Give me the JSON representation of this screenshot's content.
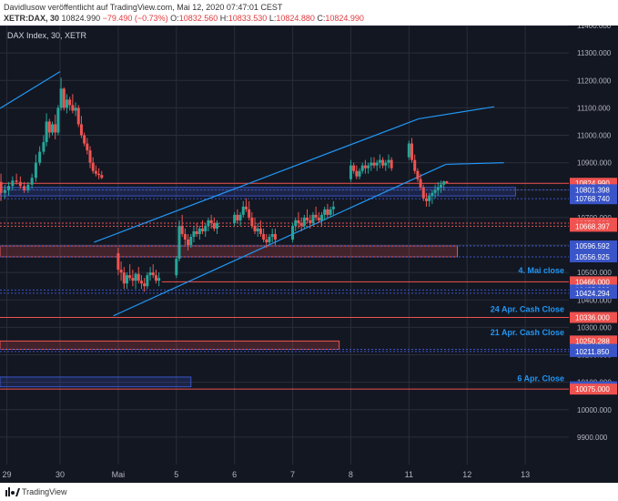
{
  "header": {
    "publisher": "Davidlusow",
    "published_text": "veröffentlicht auf TradingView.com, Mai 12, 2020 07:47:01 CEST",
    "symbol": "XETR:DAX, 30",
    "last": "10824.990",
    "change": "−79.490 (−0.73%)",
    "o_label": "O:",
    "o_value": "10832.560",
    "h_label": "H:",
    "h_value": "10833.530",
    "l_label": "L:",
    "l_value": "10824.880",
    "c_label": "C:",
    "c_value": "10824.990"
  },
  "footer": {
    "brand": "TradingView"
  },
  "chart_data": {
    "type": "candlestick",
    "title": "DAX Index, 30, XETR",
    "y_range": [
      9800,
      11400
    ],
    "y_ticks": [
      "11400.000",
      "11300.000",
      "11200.000",
      "11100.000",
      "11000.000",
      "10900.000",
      "10800.000",
      "10700.000",
      "10600.000",
      "10500.000",
      "10400.000",
      "10300.000",
      "10200.000",
      "10100.000",
      "10000.000",
      "9900.000"
    ],
    "x_ticks": [
      {
        "label": "29",
        "pos": 0.5
      },
      {
        "label": "30",
        "pos": 6
      },
      {
        "label": "Mai",
        "pos": 12
      },
      {
        "label": "5",
        "pos": 18
      },
      {
        "label": "6",
        "pos": 24
      },
      {
        "label": "7",
        "pos": 30
      },
      {
        "label": "8",
        "pos": 36
      },
      {
        "label": "11",
        "pos": 42
      },
      {
        "label": "12",
        "pos": 48
      },
      {
        "label": "13",
        "pos": 54
      }
    ],
    "x_range": [
      -0.2,
      58.5
    ],
    "colors": {
      "up": "#26a69a",
      "down": "#ef5350",
      "level": "#ef5350",
      "channel": "#2196f3",
      "zone_blue": "#3a55c8",
      "level_blue": "#5b6fe0"
    },
    "price_labels": [
      {
        "value": 10824.99,
        "text": "10824.990",
        "color": "#ef5350"
      },
      {
        "value": 10801.398,
        "text": "10801.398",
        "color": "#3a55c8"
      },
      {
        "value": 10768.74,
        "text": "10768.740",
        "color": "#3a55c8"
      },
      {
        "value": 10679.689,
        "text": "10679.689",
        "color": "#ef5350"
      },
      {
        "value": 10668.397,
        "text": "10668.397",
        "color": "#ef5350"
      },
      {
        "value": 10596.592,
        "text": "10596.592",
        "color": "#3a55c8"
      },
      {
        "value": 10556.925,
        "text": "10556.925",
        "color": "#3a55c8"
      },
      {
        "value": 10466.0,
        "text": "10466.000",
        "color": "#ef5350"
      },
      {
        "value": 10435.933,
        "text": "10435.933",
        "color": "#3a55c8"
      },
      {
        "value": 10424.294,
        "text": "10424.294",
        "color": "#3a55c8"
      },
      {
        "value": 10336.0,
        "text": "10336.000",
        "color": "#ef5350"
      },
      {
        "value": 10250.288,
        "text": "10250.288",
        "color": "#ef5350"
      },
      {
        "value": 10219.88,
        "text": "10219.880",
        "color": "#3a55c8"
      },
      {
        "value": 10211.85,
        "text": "10211.850",
        "color": "#3a55c8"
      },
      {
        "value": 10083.391,
        "text": "10083.391",
        "color": "#3a55c8"
      },
      {
        "value": 10075.0,
        "text": "10075.000",
        "color": "#ef5350"
      }
    ],
    "annotations": [
      {
        "text": "4. Mai close",
        "value": 10497
      },
      {
        "text": "24 Apr. Cash Close",
        "value": 10356
      },
      {
        "text": "21 Apr. Cash Close",
        "value": 10271
      },
      {
        "text": "6 Apr. Close",
        "value": 10104
      }
    ],
    "levels": [
      {
        "value": 10824.99,
        "x0": -0.2,
        "x1": 58.5,
        "color": "#ef5350",
        "dash": false
      },
      {
        "value": 10801.398,
        "x0": -0.2,
        "x1": 58.5,
        "color": "#3a55c8",
        "dash": true
      },
      {
        "value": 10768.74,
        "x0": -0.2,
        "x1": 58.5,
        "color": "#3a55c8",
        "dash": true
      },
      {
        "value": 10679.689,
        "x0": -0.2,
        "x1": 58.5,
        "color": "#ef5350",
        "dash": true
      },
      {
        "value": 10668.397,
        "x0": -0.2,
        "x1": 58.5,
        "color": "#ef5350",
        "dash": true
      },
      {
        "value": 10596.592,
        "x0": -0.2,
        "x1": 58.5,
        "color": "#3a55c8",
        "dash": true
      },
      {
        "value": 10556.925,
        "x0": -0.2,
        "x1": 58.5,
        "color": "#3a55c8",
        "dash": true
      },
      {
        "value": 10466.0,
        "x0": 16.5,
        "x1": 58.5,
        "color": "#ef5350",
        "dash": false
      },
      {
        "value": 10435.933,
        "x0": -0.2,
        "x1": 58.5,
        "color": "#3a55c8",
        "dash": true
      },
      {
        "value": 10424.294,
        "x0": -0.2,
        "x1": 58.5,
        "color": "#3a55c8",
        "dash": true
      },
      {
        "value": 10336.0,
        "x0": -0.2,
        "x1": 58.5,
        "color": "#ef5350",
        "dash": false
      },
      {
        "value": 10219.88,
        "x0": -0.2,
        "x1": 58.5,
        "color": "#3a55c8",
        "dash": true
      },
      {
        "value": 10211.85,
        "x0": -0.2,
        "x1": 58.5,
        "color": "#3a55c8",
        "dash": true
      },
      {
        "value": 10075.0,
        "x0": -0.2,
        "x1": 58.5,
        "color": "#ef5350",
        "dash": false
      }
    ],
    "zones": [
      {
        "from": 10779,
        "to": 10810,
        "x0": -0.2,
        "x1": 53.0,
        "color": "#3a55c8"
      },
      {
        "from": 10556.925,
        "to": 10596.592,
        "x0": -0.2,
        "x1": 47.0,
        "color": "#ef5350"
      },
      {
        "from": 10219.88,
        "to": 10250.288,
        "x0": -0.2,
        "x1": 34.8,
        "color": "#ef5350"
      },
      {
        "from": 10083.391,
        "to": 10119,
        "x0": -0.2,
        "x1": 19.5,
        "color": "#3a55c8"
      }
    ],
    "trendlines": [
      {
        "x0": -0.2,
        "y0": 11098,
        "x1": 6.0,
        "y1": 11232
      },
      {
        "x0": 9.5,
        "y0": 10610,
        "x1": 43.0,
        "y1": 11060
      },
      {
        "x0": 11.5,
        "y0": 10342,
        "x1": 45.8,
        "y1": 10894
      },
      {
        "x0": 43.0,
        "y0": 11060,
        "x1": 50.8,
        "y1": 11104
      },
      {
        "x0": 45.8,
        "y0": 10894,
        "x1": 51.8,
        "y1": 10900
      }
    ],
    "candles": [
      [
        -0.1,
        10830,
        10860,
        10760,
        10790
      ],
      [
        0.3,
        10790,
        10820,
        10770,
        10800
      ],
      [
        0.7,
        10800,
        10830,
        10780,
        10815
      ],
      [
        1.1,
        10815,
        10850,
        10800,
        10835
      ],
      [
        1.5,
        10835,
        10860,
        10820,
        10830
      ],
      [
        1.9,
        10830,
        10850,
        10805,
        10815
      ],
      [
        2.3,
        10815,
        10830,
        10790,
        10800
      ],
      [
        2.7,
        10800,
        10830,
        10790,
        10820
      ],
      [
        3.1,
        10820,
        10860,
        10805,
        10845
      ],
      [
        3.5,
        10845,
        10930,
        10830,
        10900
      ],
      [
        3.9,
        10900,
        10960,
        10890,
        10940
      ],
      [
        4.3,
        10940,
        11000,
        10930,
        10975
      ],
      [
        4.6,
        10975,
        11080,
        10960,
        11050
      ],
      [
        4.9,
        11050,
        11060,
        10990,
        11010
      ],
      [
        5.2,
        11010,
        11050,
        11000,
        11040
      ],
      [
        5.5,
        11040,
        11075,
        10985,
        11010
      ],
      [
        5.8,
        11010,
        11110,
        11000,
        11100
      ],
      [
        6.1,
        11100,
        11210,
        11090,
        11170
      ],
      [
        6.4,
        11170,
        11175,
        11090,
        11100
      ],
      [
        6.7,
        11100,
        11150,
        11080,
        11130
      ],
      [
        7.0,
        11130,
        11140,
        11090,
        11110
      ],
      [
        7.3,
        11110,
        11150,
        11080,
        11090
      ],
      [
        7.6,
        11090,
        11120,
        11070,
        11100
      ],
      [
        7.9,
        11100,
        11110,
        11030,
        11040
      ],
      [
        8.2,
        11040,
        11070,
        10990,
        11000
      ],
      [
        8.5,
        11000,
        11010,
        10960,
        10970
      ],
      [
        8.8,
        10970,
        10990,
        10930,
        10945
      ],
      [
        9.1,
        10945,
        10960,
        10880,
        10900
      ],
      [
        9.4,
        10900,
        10920,
        10860,
        10870
      ],
      [
        9.7,
        10870,
        10890,
        10850,
        10860
      ],
      [
        10.0,
        10860,
        10880,
        10840,
        10855
      ],
      [
        10.3,
        10855,
        10870,
        10840,
        10845
      ],
      [
        12.0,
        10570,
        10590,
        10490,
        10510
      ],
      [
        12.3,
        10510,
        10540,
        10470,
        10500
      ],
      [
        12.6,
        10500,
        10520,
        10440,
        10460
      ],
      [
        12.9,
        10460,
        10500,
        10440,
        10490
      ],
      [
        13.2,
        10490,
        10530,
        10470,
        10480
      ],
      [
        13.5,
        10480,
        10510,
        10450,
        10470
      ],
      [
        13.8,
        10470,
        10500,
        10440,
        10495
      ],
      [
        14.1,
        10495,
        10520,
        10460,
        10470
      ],
      [
        14.4,
        10470,
        10490,
        10440,
        10460
      ],
      [
        14.7,
        10460,
        10480,
        10430,
        10450
      ],
      [
        15.0,
        10450,
        10500,
        10440,
        10490
      ],
      [
        15.3,
        10490,
        10520,
        10470,
        10500
      ],
      [
        15.6,
        10500,
        10530,
        10480,
        10490
      ],
      [
        15.9,
        10490,
        10510,
        10460,
        10470
      ],
      [
        16.2,
        10470,
        10500,
        10450,
        10480
      ],
      [
        18.0,
        10490,
        10560,
        10480,
        10550
      ],
      [
        18.3,
        10550,
        10690,
        10540,
        10670
      ],
      [
        18.6,
        10670,
        10710,
        10630,
        10640
      ],
      [
        18.9,
        10640,
        10660,
        10600,
        10620
      ],
      [
        19.2,
        10620,
        10640,
        10580,
        10600
      ],
      [
        19.5,
        10600,
        10640,
        10590,
        10630
      ],
      [
        19.8,
        10630,
        10670,
        10610,
        10650
      ],
      [
        20.1,
        10650,
        10680,
        10630,
        10640
      ],
      [
        20.4,
        10640,
        10670,
        10620,
        10660
      ],
      [
        20.7,
        10660,
        10690,
        10640,
        10650
      ],
      [
        21.0,
        10650,
        10680,
        10630,
        10670
      ],
      [
        21.3,
        10670,
        10700,
        10650,
        10690
      ],
      [
        21.6,
        10690,
        10710,
        10660,
        10680
      ],
      [
        21.9,
        10680,
        10700,
        10650,
        10660
      ],
      [
        22.2,
        10660,
        10690,
        10640,
        10680
      ],
      [
        24.0,
        10680,
        10720,
        10670,
        10710
      ],
      [
        24.3,
        10710,
        10730,
        10680,
        10690
      ],
      [
        24.6,
        10690,
        10720,
        10670,
        10710
      ],
      [
        24.9,
        10710,
        10760,
        10700,
        10740
      ],
      [
        25.2,
        10740,
        10770,
        10720,
        10730
      ],
      [
        25.5,
        10730,
        10760,
        10690,
        10700
      ],
      [
        25.8,
        10700,
        10720,
        10660,
        10670
      ],
      [
        26.1,
        10670,
        10700,
        10640,
        10650
      ],
      [
        26.4,
        10650,
        10680,
        10630,
        10660
      ],
      [
        26.7,
        10660,
        10690,
        10630,
        10640
      ],
      [
        27.0,
        10640,
        10660,
        10610,
        10620
      ],
      [
        27.3,
        10620,
        10640,
        10590,
        10610
      ],
      [
        27.6,
        10610,
        10640,
        10600,
        10630
      ],
      [
        27.9,
        10630,
        10660,
        10610,
        10640
      ],
      [
        28.2,
        10640,
        10660,
        10600,
        10620
      ],
      [
        30.0,
        10620,
        10680,
        10610,
        10670
      ],
      [
        30.3,
        10670,
        10700,
        10650,
        10690
      ],
      [
        30.6,
        10690,
        10720,
        10660,
        10680
      ],
      [
        30.9,
        10680,
        10700,
        10650,
        10670
      ],
      [
        31.2,
        10670,
        10710,
        10660,
        10700
      ],
      [
        31.5,
        10700,
        10730,
        10680,
        10690
      ],
      [
        31.8,
        10690,
        10710,
        10660,
        10680
      ],
      [
        32.1,
        10680,
        10720,
        10670,
        10710
      ],
      [
        32.4,
        10710,
        10740,
        10690,
        10700
      ],
      [
        32.7,
        10700,
        10720,
        10680,
        10690
      ],
      [
        33.0,
        10690,
        10720,
        10670,
        10710
      ],
      [
        33.3,
        10710,
        10740,
        10690,
        10730
      ],
      [
        33.6,
        10730,
        10750,
        10700,
        10710
      ],
      [
        33.9,
        10710,
        10740,
        10700,
        10730
      ],
      [
        34.2,
        10730,
        10760,
        10710,
        10740
      ],
      [
        36.0,
        10840,
        10910,
        10830,
        10890
      ],
      [
        36.3,
        10890,
        10900,
        10860,
        10870
      ],
      [
        36.6,
        10870,
        10890,
        10840,
        10850
      ],
      [
        36.9,
        10850,
        10880,
        10840,
        10870
      ],
      [
        37.2,
        10870,
        10900,
        10860,
        10890
      ],
      [
        37.5,
        10890,
        10910,
        10860,
        10880
      ],
      [
        37.8,
        10880,
        10900,
        10860,
        10890
      ],
      [
        38.1,
        10890,
        10920,
        10870,
        10900
      ],
      [
        38.4,
        10900,
        10920,
        10880,
        10890
      ],
      [
        38.7,
        10890,
        10910,
        10870,
        10900
      ],
      [
        39.0,
        10900,
        10930,
        10880,
        10910
      ],
      [
        39.3,
        10910,
        10920,
        10880,
        10890
      ],
      [
        39.6,
        10890,
        10910,
        10870,
        10900
      ],
      [
        39.9,
        10900,
        10930,
        10880,
        10910
      ],
      [
        40.2,
        10910,
        10920,
        10870,
        10880
      ],
      [
        42.0,
        10920,
        10980,
        10910,
        10970
      ],
      [
        42.3,
        10970,
        10990,
        10900,
        10910
      ],
      [
        42.6,
        10910,
        10930,
        10860,
        10870
      ],
      [
        42.9,
        10870,
        10880,
        10830,
        10840
      ],
      [
        43.2,
        10840,
        10860,
        10800,
        10810
      ],
      [
        43.5,
        10810,
        10820,
        10760,
        10770
      ],
      [
        43.8,
        10770,
        10790,
        10740,
        10760
      ],
      [
        44.1,
        10760,
        10790,
        10740,
        10780
      ],
      [
        44.4,
        10780,
        10800,
        10750,
        10790
      ],
      [
        44.7,
        10790,
        10820,
        10770,
        10800
      ],
      [
        45.0,
        10800,
        10830,
        10780,
        10810
      ],
      [
        45.3,
        10810,
        10835,
        10790,
        10820
      ],
      [
        45.6,
        10820,
        10835,
        10800,
        10832
      ],
      [
        45.9,
        10832,
        10834,
        10824,
        10825
      ]
    ]
  }
}
